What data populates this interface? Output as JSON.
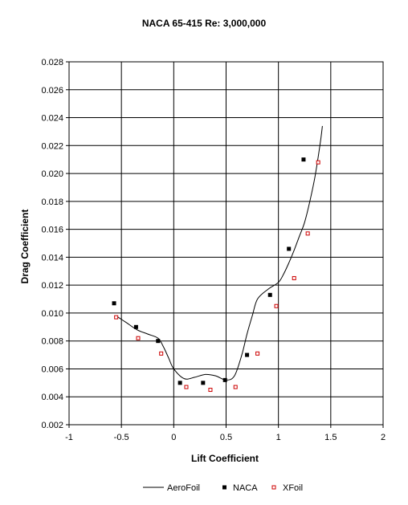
{
  "chart_data": {
    "type": "scatter",
    "title": "NACA 65-415 Re: 3,000,000",
    "xlabel": "Lift Coefficient",
    "ylabel": "Drag Coefficient",
    "xlim": [
      -1,
      2
    ],
    "ylim": [
      0.002,
      0.028
    ],
    "x_ticks": [
      "-1",
      "-0.5",
      "0",
      "0.5",
      "1",
      "1.5",
      "2"
    ],
    "y_ticks": [
      "0.002",
      "0.004",
      "0.006",
      "0.008",
      "0.010",
      "0.012",
      "0.014",
      "0.016",
      "0.018",
      "0.020",
      "0.022",
      "0.024",
      "0.026",
      "0.028"
    ],
    "grid": true,
    "legend_position": "bottom",
    "series": [
      {
        "name": "AeroFoil",
        "kind": "line",
        "color": "#000000",
        "x": [
          -0.55,
          -0.45,
          -0.35,
          -0.25,
          -0.15,
          -0.1,
          -0.05,
          0.0,
          0.1,
          0.2,
          0.3,
          0.4,
          0.5,
          0.58,
          0.65,
          0.7,
          0.75,
          0.8,
          0.9,
          1.0,
          1.05,
          1.1,
          1.15,
          1.2,
          1.25,
          1.3,
          1.35,
          1.4,
          1.42
        ],
        "y": [
          0.0098,
          0.0093,
          0.0088,
          0.0085,
          0.0082,
          0.0076,
          0.0068,
          0.006,
          0.0053,
          0.0054,
          0.0056,
          0.0055,
          0.0052,
          0.0055,
          0.007,
          0.0085,
          0.0098,
          0.011,
          0.0117,
          0.0122,
          0.0128,
          0.0136,
          0.0145,
          0.0155,
          0.0165,
          0.018,
          0.0198,
          0.0222,
          0.0234
        ]
      },
      {
        "name": "NACA",
        "kind": "marker",
        "marker": "filled-square",
        "color": "#000000",
        "x": [
          -0.57,
          -0.36,
          -0.15,
          0.06,
          0.28,
          0.49,
          0.7,
          0.92,
          1.1,
          1.24
        ],
        "y": [
          0.0107,
          0.009,
          0.008,
          0.005,
          0.005,
          0.0052,
          0.007,
          0.0113,
          0.0146,
          0.021
        ]
      },
      {
        "name": "XFoil",
        "kind": "marker",
        "marker": "open-square",
        "color": "#cc0000",
        "x": [
          -0.55,
          -0.34,
          -0.12,
          0.12,
          0.35,
          0.59,
          0.8,
          0.98,
          1.15,
          1.28,
          1.38
        ],
        "y": [
          0.0097,
          0.0082,
          0.0071,
          0.0047,
          0.0045,
          0.0047,
          0.0071,
          0.0105,
          0.0125,
          0.0157,
          0.0208
        ]
      }
    ]
  }
}
